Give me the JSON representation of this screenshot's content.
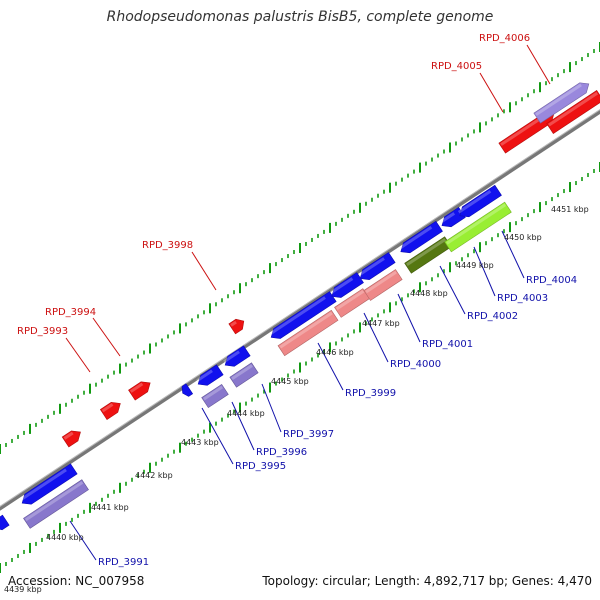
{
  "title": "Rhodopseudomonas palustris BisB5, complete genome",
  "footer": {
    "accession": "Accession: NC_007958",
    "stats": "Topology: circular; Length: 4,892,717 bp; Genes: 4,470"
  },
  "colors": {
    "forward_cds": "#ee1111",
    "reverse_cds": "#1111ee",
    "forward_rna": "#9988dd",
    "reverse_rna": "#8877cc",
    "pink_feature": "#ee8888",
    "green_bright": "#99ee33",
    "green_dark": "#557711",
    "backbone": "#888888",
    "tick_green": "#119911",
    "label_forward": "#cc1111",
    "label_reverse": "#1111aa"
  },
  "ruler": [
    "4439 kbp",
    "4440 kbp",
    "4441 kbp",
    "4442 kbp",
    "4443 kbp",
    "4444 kbp",
    "4445 kbp",
    "4446 kbp",
    "4447 kbp",
    "4448 kbp",
    "4449 kbp",
    "4450 kbp",
    "4451 kbp"
  ],
  "labels": {
    "forward": [
      "RPD_3993",
      "RPD_3994",
      "RPD_3998",
      "RPD_4005",
      "RPD_4006"
    ],
    "reverse": [
      "RPD_3991",
      "RPD_3995",
      "RPD_3996",
      "RPD_3997",
      "RPD_3999",
      "RPD_4000",
      "RPD_4001",
      "RPD_4002",
      "RPD_4003",
      "RPD_4004"
    ]
  }
}
